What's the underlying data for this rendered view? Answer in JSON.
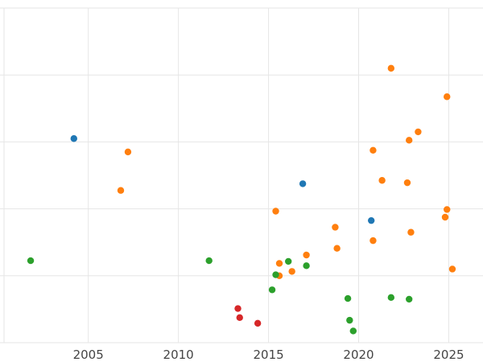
{
  "chart_data": {
    "type": "scatter",
    "title": "",
    "xlabel": "",
    "ylabel": "",
    "xlim": [
      2000.1,
      2026.9
    ],
    "ylim": [
      0,
      100
    ],
    "grid": true,
    "x_ticks": [
      2005,
      2010,
      2015,
      2020,
      2025
    ],
    "x_tick_labels": [
      "2005",
      "2010",
      "2015",
      "2020",
      "2025"
    ],
    "y_ticks": [
      0,
      20,
      40,
      60,
      80,
      100
    ],
    "y_tick_labels": [
      "",
      "",
      "",
      "",
      "",
      ""
    ],
    "series": [
      {
        "name": "blue",
        "color": "#1f77b4",
        "points": [
          {
            "x": 2004.2,
            "y": 61.0
          },
          {
            "x": 2016.9,
            "y": 47.5
          },
          {
            "x": 2020.7,
            "y": 36.5
          }
        ]
      },
      {
        "name": "orange",
        "color": "#ff7f0e",
        "points": [
          {
            "x": 2021.8,
            "y": 82.0
          },
          {
            "x": 2024.9,
            "y": 73.5
          },
          {
            "x": 2023.3,
            "y": 63.0
          },
          {
            "x": 2022.8,
            "y": 60.5
          },
          {
            "x": 2020.8,
            "y": 57.5
          },
          {
            "x": 2007.2,
            "y": 57.0
          },
          {
            "x": 2021.3,
            "y": 48.5
          },
          {
            "x": 2022.7,
            "y": 47.8
          },
          {
            "x": 2006.8,
            "y": 45.5
          },
          {
            "x": 2015.4,
            "y": 39.3
          },
          {
            "x": 2024.9,
            "y": 39.8
          },
          {
            "x": 2024.8,
            "y": 37.5
          },
          {
            "x": 2018.7,
            "y": 34.5
          },
          {
            "x": 2022.9,
            "y": 33.0
          },
          {
            "x": 2020.8,
            "y": 30.5
          },
          {
            "x": 2018.8,
            "y": 28.2
          },
          {
            "x": 2017.1,
            "y": 26.2
          },
          {
            "x": 2015.6,
            "y": 23.7
          },
          {
            "x": 2016.3,
            "y": 21.3
          },
          {
            "x": 2015.6,
            "y": 20.0
          },
          {
            "x": 2025.2,
            "y": 22.0
          }
        ]
      },
      {
        "name": "green",
        "color": "#2ca02c",
        "points": [
          {
            "x": 2001.8,
            "y": 24.5
          },
          {
            "x": 2011.7,
            "y": 24.5
          },
          {
            "x": 2016.1,
            "y": 24.3
          },
          {
            "x": 2017.1,
            "y": 23.0
          },
          {
            "x": 2015.4,
            "y": 20.3
          },
          {
            "x": 2015.2,
            "y": 15.8
          },
          {
            "x": 2019.4,
            "y": 13.2
          },
          {
            "x": 2021.8,
            "y": 13.5
          },
          {
            "x": 2022.8,
            "y": 13.0
          },
          {
            "x": 2019.5,
            "y": 6.7
          },
          {
            "x": 2019.7,
            "y": 3.5
          }
        ]
      },
      {
        "name": "red",
        "color": "#d62728",
        "points": [
          {
            "x": 2013.3,
            "y": 10.2
          },
          {
            "x": 2013.4,
            "y": 7.5
          },
          {
            "x": 2014.4,
            "y": 5.8
          }
        ]
      }
    ]
  }
}
